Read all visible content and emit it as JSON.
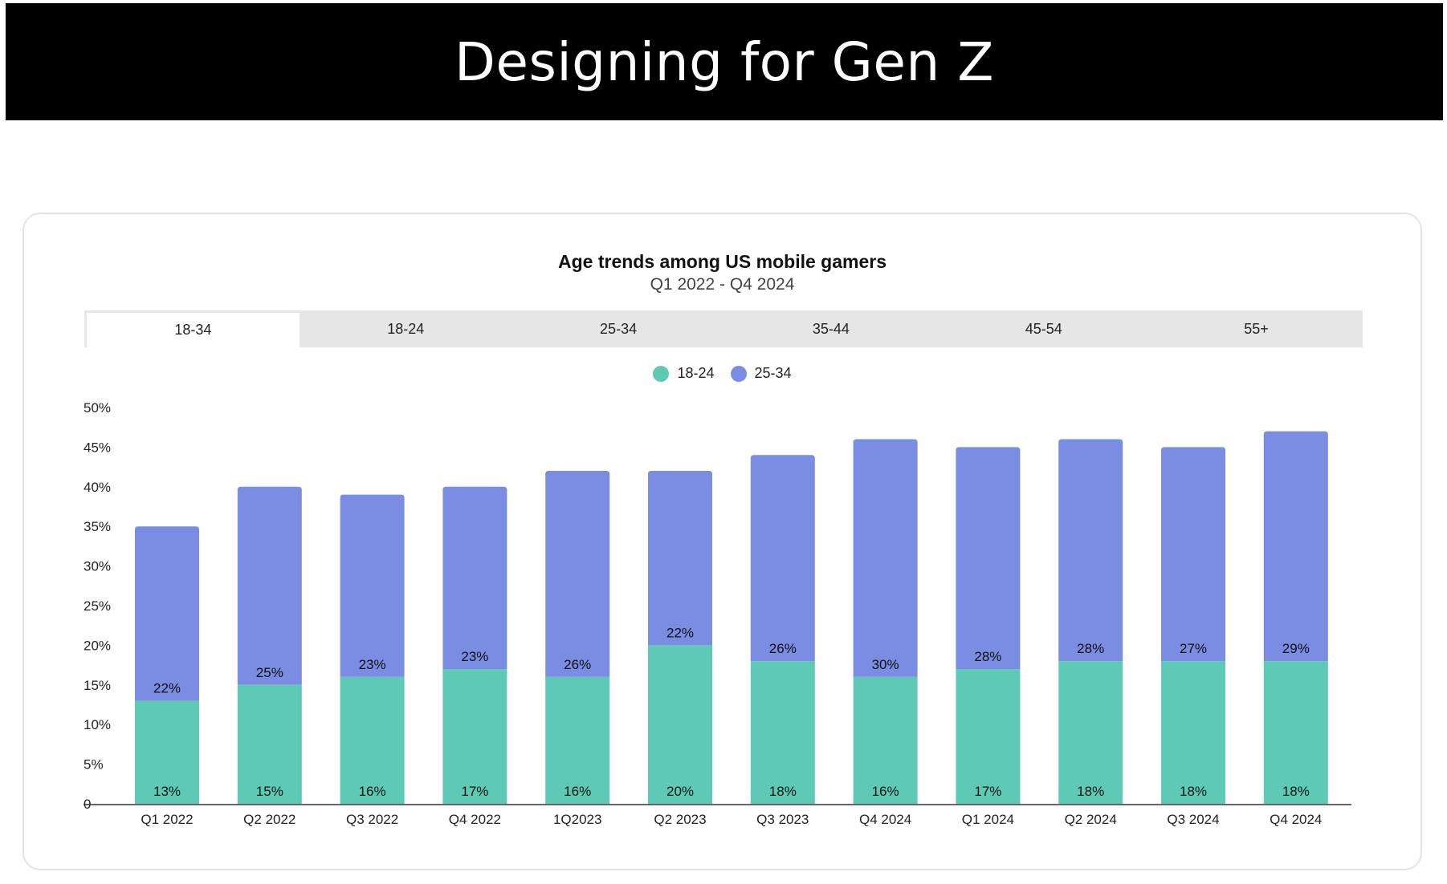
{
  "header": {
    "title": "Designing for Gen Z"
  },
  "tabs": [
    {
      "label": "18-34",
      "active": true
    },
    {
      "label": "18-24",
      "active": false
    },
    {
      "label": "25-34",
      "active": false
    },
    {
      "label": "35-44",
      "active": false
    },
    {
      "label": "45-54",
      "active": false
    },
    {
      "label": "55+",
      "active": false
    }
  ],
  "colors": {
    "series_18_24": "#5ecab6",
    "series_25_34": "#7b8ce3",
    "axis": "#333333"
  },
  "chart_data": {
    "type": "bar",
    "stacked": true,
    "title": "Age trends among US mobile gamers",
    "subtitle": "Q1 2022 - Q4 2024",
    "categories": [
      "Q1 2022",
      "Q2 2022",
      "Q3 2022",
      "Q4 2022",
      "1Q2023",
      "Q2 2023",
      "Q3 2023",
      "Q4 2024",
      "Q1 2024",
      "Q2 2024",
      "Q3 2024",
      "Q4 2024"
    ],
    "series": [
      {
        "name": "18-24",
        "values": [
          13,
          15,
          16,
          17,
          16,
          20,
          18,
          16,
          17,
          18,
          18,
          18
        ],
        "labels": [
          "13%",
          "15%",
          "16%",
          "17%",
          "16%",
          "20%",
          "18%",
          "16%",
          "17%",
          "18%",
          "18%",
          "18%"
        ]
      },
      {
        "name": "25-34",
        "values": [
          22,
          25,
          23,
          23,
          26,
          22,
          26,
          30,
          28,
          28,
          27,
          29
        ],
        "labels": [
          "22%",
          "25%",
          "23%",
          "23%",
          "26%",
          "22%",
          "26%",
          "30%",
          "28%",
          "28%",
          "27%",
          "29%"
        ]
      }
    ],
    "y_ticks": [
      0,
      5,
      10,
      15,
      20,
      25,
      30,
      35,
      40,
      45,
      50
    ],
    "y_tick_labels": [
      "0",
      "5%",
      "10%",
      "15%",
      "20%",
      "25%",
      "30%",
      "35%",
      "40%",
      "45%",
      "50%"
    ],
    "ylim": [
      0,
      50
    ],
    "legend_position": "top-center",
    "grid": false
  }
}
